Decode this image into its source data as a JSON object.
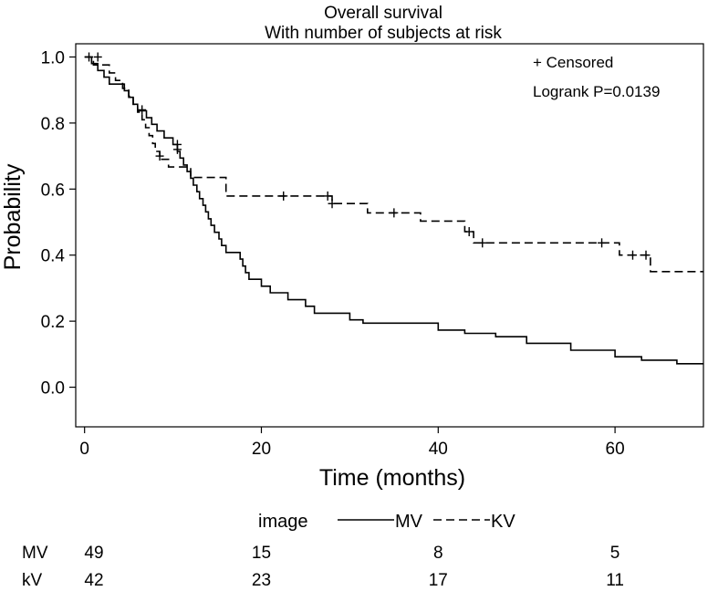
{
  "chart_data": {
    "type": "line",
    "subtype": "kaplan-meier",
    "title": "Overall survival",
    "subtitle": "With number of subjects at risk",
    "xlabel": "Time (months)",
    "ylabel": "Probability",
    "xlim": [
      -1,
      70
    ],
    "ylim": [
      -0.12,
      1.04
    ],
    "x_ticks": [
      0,
      20,
      40,
      60
    ],
    "x_tick_labels": [
      "0",
      "20",
      "40",
      "60"
    ],
    "y_ticks": [
      0,
      0.2,
      0.4,
      0.6,
      0.8,
      1.0
    ],
    "y_tick_labels": [
      "0.0",
      "0.2",
      "0.4",
      "0.6",
      "0.8",
      "1.0"
    ],
    "annotations": [
      "+ Censored",
      "Logrank P=0.0139"
    ],
    "legend": {
      "title": "image",
      "placement": "bottom"
    },
    "series": [
      {
        "name": "MV",
        "style": "solid",
        "steps": [
          [
            0,
            1.0
          ],
          [
            0.8,
            0.98
          ],
          [
            1.5,
            0.959
          ],
          [
            2.2,
            0.939
          ],
          [
            2.8,
            0.918
          ],
          [
            4.5,
            0.898
          ],
          [
            5.0,
            0.878
          ],
          [
            5.5,
            0.857
          ],
          [
            6.0,
            0.837
          ],
          [
            7.0,
            0.816
          ],
          [
            7.6,
            0.796
          ],
          [
            8.2,
            0.776
          ],
          [
            9.0,
            0.755
          ],
          [
            10.0,
            0.735
          ],
          [
            10.5,
            0.714
          ],
          [
            10.8,
            0.694
          ],
          [
            11.2,
            0.673
          ],
          [
            11.6,
            0.653
          ],
          [
            12.0,
            0.633
          ],
          [
            12.3,
            0.612
          ],
          [
            12.7,
            0.592
          ],
          [
            13.0,
            0.571
          ],
          [
            13.4,
            0.551
          ],
          [
            13.7,
            0.531
          ],
          [
            14.0,
            0.51
          ],
          [
            14.3,
            0.49
          ],
          [
            14.7,
            0.469
          ],
          [
            15.2,
            0.449
          ],
          [
            15.5,
            0.429
          ],
          [
            16.0,
            0.408
          ],
          [
            17.6,
            0.388
          ],
          [
            17.9,
            0.367
          ],
          [
            18.2,
            0.347
          ],
          [
            18.6,
            0.327
          ],
          [
            20.0,
            0.306
          ],
          [
            21.0,
            0.286
          ],
          [
            23.0,
            0.265
          ],
          [
            25.0,
            0.245
          ],
          [
            26.0,
            0.224
          ],
          [
            30.0,
            0.204
          ],
          [
            31.5,
            0.194
          ],
          [
            40.0,
            0.173
          ],
          [
            43.0,
            0.163
          ],
          [
            46.5,
            0.153
          ],
          [
            50.0,
            0.133
          ],
          [
            55.0,
            0.112
          ],
          [
            60.0,
            0.092
          ],
          [
            63.0,
            0.082
          ],
          [
            67.0,
            0.071
          ],
          [
            70.0,
            0.071
          ]
        ],
        "censored": [
          [
            0.5,
            1.0
          ],
          [
            10.5,
            0.735
          ]
        ]
      },
      {
        "name": "KV",
        "style": "dashed",
        "steps": [
          [
            0,
            1.0
          ],
          [
            1.0,
            0.976
          ],
          [
            2.8,
            0.952
          ],
          [
            3.5,
            0.929
          ],
          [
            4.3,
            0.905
          ],
          [
            5.0,
            0.881
          ],
          [
            5.5,
            0.857
          ],
          [
            6.0,
            0.833
          ],
          [
            6.5,
            0.81
          ],
          [
            6.9,
            0.786
          ],
          [
            7.3,
            0.762
          ],
          [
            7.7,
            0.738
          ],
          [
            8.0,
            0.714
          ],
          [
            8.5,
            0.69
          ],
          [
            9.5,
            0.667
          ],
          [
            12.0,
            0.635
          ],
          [
            16.0,
            0.579
          ],
          [
            28.0,
            0.556
          ],
          [
            32.0,
            0.528
          ],
          [
            38.0,
            0.503
          ],
          [
            43.0,
            0.471
          ],
          [
            44.0,
            0.437
          ],
          [
            58.0,
            0.437
          ],
          [
            60.5,
            0.4
          ],
          [
            64.0,
            0.35
          ],
          [
            70.0,
            0.35
          ]
        ],
        "censored": [
          [
            1.5,
            1.0
          ],
          [
            6.5,
            0.84
          ],
          [
            8.5,
            0.7
          ],
          [
            10.5,
            0.72
          ],
          [
            22.5,
            0.579
          ],
          [
            27.5,
            0.579
          ],
          [
            28.0,
            0.556
          ],
          [
            35.0,
            0.528
          ],
          [
            43.5,
            0.471
          ],
          [
            45.0,
            0.437
          ],
          [
            58.5,
            0.437
          ],
          [
            62.0,
            0.4
          ],
          [
            63.5,
            0.4
          ]
        ]
      }
    ],
    "risk_table": {
      "times": [
        0,
        20,
        40,
        60
      ],
      "rows": [
        {
          "label": "MV",
          "counts": [
            "49",
            "15",
            "8",
            "5"
          ]
        },
        {
          "label": "kV",
          "counts": [
            "42",
            "23",
            "17",
            "11"
          ]
        }
      ]
    }
  },
  "colors": {
    "line": "#000000",
    "background": "#ffffff"
  }
}
